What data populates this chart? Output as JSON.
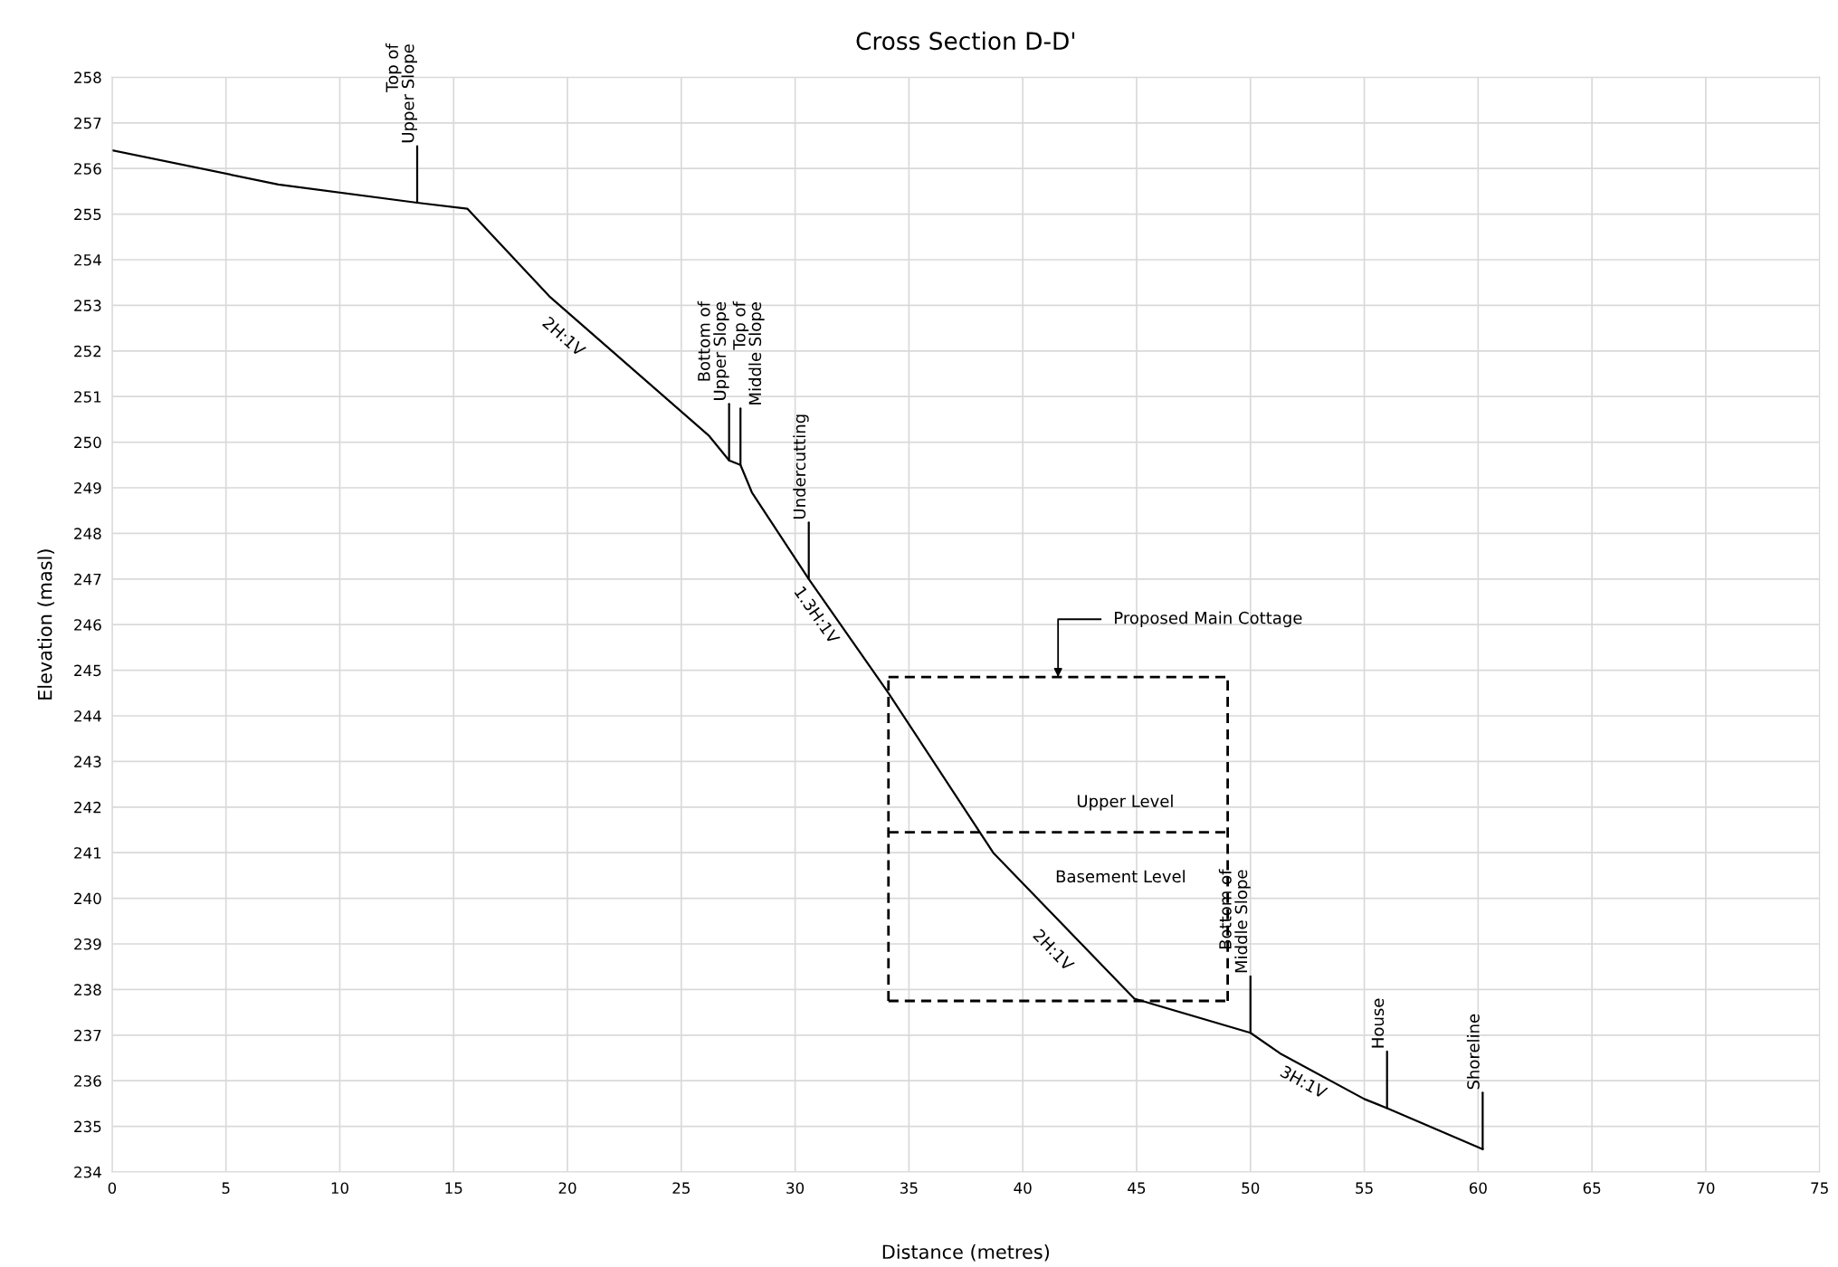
{
  "chart_data": {
    "type": "line",
    "title": "Cross Section D-D'",
    "xlabel": "Distance (metres)",
    "ylabel": "Elevation (masl)",
    "xlim": [
      0,
      75
    ],
    "xticks": [
      0,
      5,
      10,
      15,
      20,
      25,
      30,
      35,
      40,
      45,
      50,
      55,
      60,
      65,
      70,
      75
    ],
    "ylim": [
      234,
      258
    ],
    "yticks": [
      234,
      235,
      236,
      237,
      238,
      239,
      240,
      241,
      242,
      243,
      244,
      245,
      246,
      247,
      248,
      249,
      250,
      251,
      252,
      253,
      254,
      255,
      256,
      257,
      258
    ],
    "grid": true,
    "legend": false,
    "marker": "none",
    "series": [
      {
        "color": "#000000",
        "line_style": "solid",
        "x": [
          0,
          7.3,
          13.4,
          15.6,
          19.2,
          26.2,
          27.1,
          27.6,
          28.1,
          30.6,
          34.1,
          38.7,
          44.9,
          50.0,
          51.3,
          55.0,
          56.0,
          60.2
        ],
        "values": [
          256.4,
          255.65,
          255.25,
          255.12,
          253.2,
          250.15,
          249.6,
          249.5,
          248.9,
          247.0,
          244.5,
          241.0,
          237.8,
          237.05,
          236.6,
          235.6,
          235.4,
          234.5
        ]
      },
      {
        "color": "#000000",
        "line_style": "dashed",
        "x": [
          34.1,
          49.0
        ],
        "values": [
          244.85,
          244.85
        ]
      },
      {
        "color": "#000000",
        "line_style": "dashed",
        "x": [
          34.1,
          49.0
        ],
        "values": [
          241.45,
          241.45
        ]
      },
      {
        "color": "#000000",
        "line_style": "dashed",
        "x": [
          34.1,
          49.0
        ],
        "values": [
          237.75,
          237.75
        ]
      },
      {
        "color": "#000000",
        "line_style": "dashed",
        "x": [
          34.1,
          34.1
        ],
        "values": [
          237.75,
          244.85
        ]
      },
      {
        "color": "#000000",
        "line_style": "dashed",
        "x": [
          49.0,
          49.0
        ],
        "values": [
          237.75,
          244.85
        ]
      }
    ],
    "annotations": [
      {
        "text": "Top of\nUpper Slope",
        "x": 13.4,
        "y": 255.25
      },
      {
        "text": "Bottom of\nUpper Slope",
        "x": 27.1,
        "y": 249.6
      },
      {
        "text": "Top of\nMiddle Slope",
        "x": 27.6,
        "y": 249.5
      },
      {
        "text": "Undercutting",
        "x": 30.6,
        "y": 247.0
      },
      {
        "text": "Bottom of\nMiddle Slope",
        "x": 50.0,
        "y": 237.05
      },
      {
        "text": "House",
        "x": 56.0,
        "y": 235.4
      },
      {
        "text": "Shoreline",
        "x": 60.2,
        "y": 234.5
      },
      {
        "text": "Proposed Main Cottage",
        "x": 41.55,
        "y": 244.85
      },
      "2H:1V",
      "1.3H:1V",
      "2H:1V",
      "3H:1V",
      "Upper Level",
      "Basement Level"
    ]
  }
}
